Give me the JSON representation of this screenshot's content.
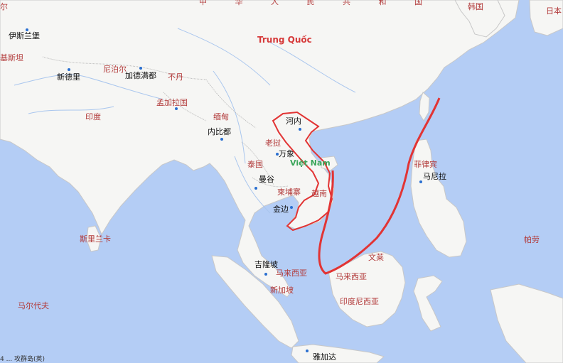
{
  "map": {
    "colors": {
      "sea": "#b4cdf5",
      "land": "#f6f6f4",
      "border": "#b9b9b9",
      "river": "#a9c6ee",
      "highlight": "#e23434",
      "nine_dash": "#e23434"
    },
    "labels": {
      "china": "中 华 人 民 共 和 国",
      "trung_quoc": "Trung Quốc",
      "korea": "韩国",
      "japan": "日本",
      "afghan_partial": "尔",
      "islamabad": "伊斯兰堡",
      "pakistan_partial": "基斯坦",
      "new_delhi": "新德里",
      "nepal": "尼泊尔",
      "kathmandu": "加德满都",
      "bhutan": "不丹",
      "bangladesh": "孟加拉国",
      "india": "印度",
      "myanmar": "缅甸",
      "naypyidaw": "内比都",
      "hanoi": "河内",
      "laos": "老挝",
      "vientiane": "万象",
      "viet_nam": "Việt Nam",
      "thailand": "泰国",
      "bangkok": "曼谷",
      "cambodia": "柬埔寨",
      "vietnam_cn": "越南",
      "phnom_penh": "金边",
      "philippines": "菲律宾",
      "manila": "马尼拉",
      "palau": "帕劳",
      "sri_lanka": "斯里兰卡",
      "maldives": "马尔代夫",
      "kuala_lumpur": "吉隆坡",
      "malaysia": "马来西亚",
      "singapore": "新加坡",
      "brunei": "文莱",
      "malaysia_east": "马来西亚",
      "indonesia": "印度尼西亚",
      "jakarta": "雅加达",
      "scale": "4 ... 攻群岛(英)"
    }
  }
}
